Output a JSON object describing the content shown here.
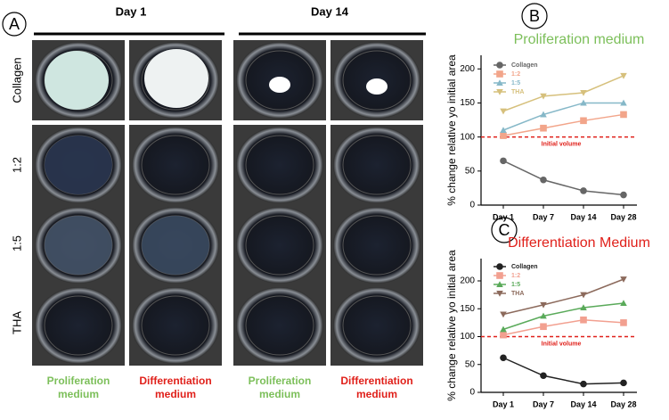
{
  "panel_a": {
    "letter": "A",
    "groups": [
      "Day 1",
      "Day 14"
    ],
    "rows": [
      "Collagen",
      "1:2",
      "1:5",
      "THA"
    ],
    "columns": [
      {
        "lines": [
          "Proliferation",
          "medium"
        ],
        "color": "#7cbf5a"
      },
      {
        "lines": [
          "Differentiation",
          "medium"
        ],
        "color": "#e0201a"
      },
      {
        "lines": [
          "Proliferation",
          "medium"
        ],
        "color": "#7cbf5a"
      },
      {
        "lines": [
          "Differentiation",
          "medium"
        ],
        "color": "#e0201a"
      }
    ]
  },
  "chart_data": [
    {
      "type": "line",
      "letter": "B",
      "title": "Proliferation medium",
      "title_color": "#7cbf5a",
      "y_label": "% change relative yo initial area",
      "categories": [
        "Day 1",
        "Day 7",
        "Day 14",
        "Day 28"
      ],
      "ylim": [
        0,
        220
      ],
      "yticks": [
        0,
        50,
        100,
        150,
        200
      ],
      "reference": {
        "value": 100,
        "label": "Initial volume",
        "color": "#e0201a"
      },
      "series": [
        {
          "name": "Collagen",
          "color": "#666666",
          "marker": "circle",
          "values": [
            65,
            37,
            21,
            15
          ]
        },
        {
          "name": "1:2",
          "color": "#f2a58a",
          "marker": "square",
          "values": [
            102,
            113,
            124,
            133
          ]
        },
        {
          "name": "1:5",
          "color": "#86b8c8",
          "marker": "triangle",
          "values": [
            110,
            133,
            150,
            150
          ]
        },
        {
          "name": "THA",
          "color": "#d6c07c",
          "marker": "triangle-down",
          "values": [
            138,
            160,
            165,
            190
          ]
        }
      ]
    },
    {
      "type": "line",
      "letter": "C",
      "title": "Differentiation Medium",
      "title_color": "#e0201a",
      "y_label": "% change relative yo initial area",
      "categories": [
        "Day 1",
        "Day 7",
        "Day 14",
        "Day 28"
      ],
      "ylim": [
        0,
        240
      ],
      "yticks": [
        0,
        50,
        100,
        150,
        200
      ],
      "reference": {
        "value": 100,
        "label": "Initial volume",
        "color": "#e0201a"
      },
      "series": [
        {
          "name": "Collagen",
          "color": "#222222",
          "marker": "circle",
          "values": [
            62,
            30,
            15,
            17
          ]
        },
        {
          "name": "1:2",
          "color": "#f2a090",
          "marker": "square",
          "values": [
            103,
            118,
            130,
            125
          ]
        },
        {
          "name": "1:5",
          "color": "#5aaa5a",
          "marker": "triangle",
          "values": [
            113,
            137,
            152,
            160
          ]
        },
        {
          "name": "THA",
          "color": "#8c6a5c",
          "marker": "triangle-down",
          "values": [
            140,
            157,
            175,
            203
          ]
        }
      ]
    }
  ]
}
